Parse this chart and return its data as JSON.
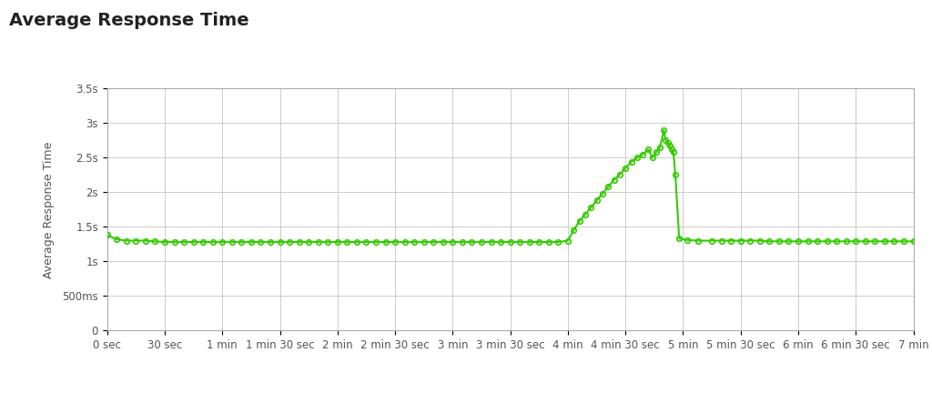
{
  "title": "Average Response Time",
  "ylabel": "Average Response Time",
  "xlabel": "",
  "background_color": "#ffffff",
  "plot_bg_color": "#ffffff",
  "grid_color": "#cccccc",
  "line_color": "#33cc00",
  "marker_color": "#33cc00",
  "title_fontsize": 14,
  "label_fontsize": 9,
  "tick_fontsize": 8.5,
  "xlim": [
    0,
    420
  ],
  "ylim": [
    0,
    3.5
  ],
  "yticks": [
    0,
    0.5,
    1.0,
    1.5,
    2.0,
    2.5,
    3.0,
    3.5
  ],
  "ytick_labels": [
    "0",
    "500ms",
    "1s",
    "1.5s",
    "2s",
    "2.5s",
    "3s",
    "3.5s"
  ],
  "xticks": [
    0,
    30,
    60,
    90,
    120,
    150,
    180,
    210,
    240,
    270,
    300,
    330,
    360,
    390,
    420
  ],
  "xtick_labels": [
    "0 sec",
    "30 sec",
    "1 min",
    "1 min 30 sec",
    "2 min",
    "2 min 30 sec",
    "3 min",
    "3 min 30 sec",
    "4 min",
    "4 min 30 sec",
    "5 min",
    "5 min 30 sec",
    "6 min",
    "6 min 30 sec",
    "7 min"
  ],
  "x_data": [
    0,
    5,
    10,
    15,
    20,
    25,
    30,
    35,
    40,
    45,
    50,
    55,
    60,
    65,
    70,
    75,
    80,
    85,
    90,
    95,
    100,
    105,
    110,
    115,
    120,
    125,
    130,
    135,
    140,
    145,
    150,
    155,
    160,
    165,
    170,
    175,
    180,
    185,
    190,
    195,
    200,
    205,
    210,
    215,
    220,
    225,
    230,
    235,
    240,
    243,
    246,
    249,
    252,
    255,
    258,
    261,
    264,
    267,
    270,
    273,
    276,
    279,
    282,
    284,
    286,
    288,
    290,
    291,
    292,
    293,
    294,
    295,
    296,
    298,
    302,
    308,
    315,
    320,
    325,
    330,
    335,
    340,
    345,
    350,
    355,
    360,
    365,
    370,
    375,
    380,
    385,
    390,
    395,
    400,
    405,
    410,
    415,
    420
  ],
  "y_data": [
    1.38,
    1.32,
    1.3,
    1.3,
    1.3,
    1.29,
    1.28,
    1.28,
    1.28,
    1.28,
    1.28,
    1.28,
    1.28,
    1.28,
    1.28,
    1.28,
    1.28,
    1.28,
    1.28,
    1.28,
    1.28,
    1.28,
    1.28,
    1.28,
    1.28,
    1.28,
    1.28,
    1.28,
    1.28,
    1.28,
    1.28,
    1.28,
    1.28,
    1.28,
    1.28,
    1.28,
    1.28,
    1.28,
    1.28,
    1.28,
    1.28,
    1.28,
    1.28,
    1.28,
    1.28,
    1.28,
    1.28,
    1.28,
    1.3,
    1.45,
    1.58,
    1.68,
    1.78,
    1.88,
    1.98,
    2.08,
    2.18,
    2.26,
    2.35,
    2.44,
    2.5,
    2.55,
    2.62,
    2.5,
    2.58,
    2.65,
    2.9,
    2.75,
    2.72,
    2.68,
    2.62,
    2.58,
    2.25,
    1.33,
    1.31,
    1.3,
    1.3,
    1.3,
    1.3,
    1.3,
    1.3,
    1.3,
    1.29,
    1.29,
    1.29,
    1.29,
    1.29,
    1.29,
    1.29,
    1.29,
    1.29,
    1.29,
    1.29,
    1.29,
    1.29,
    1.29,
    1.29,
    1.29
  ]
}
